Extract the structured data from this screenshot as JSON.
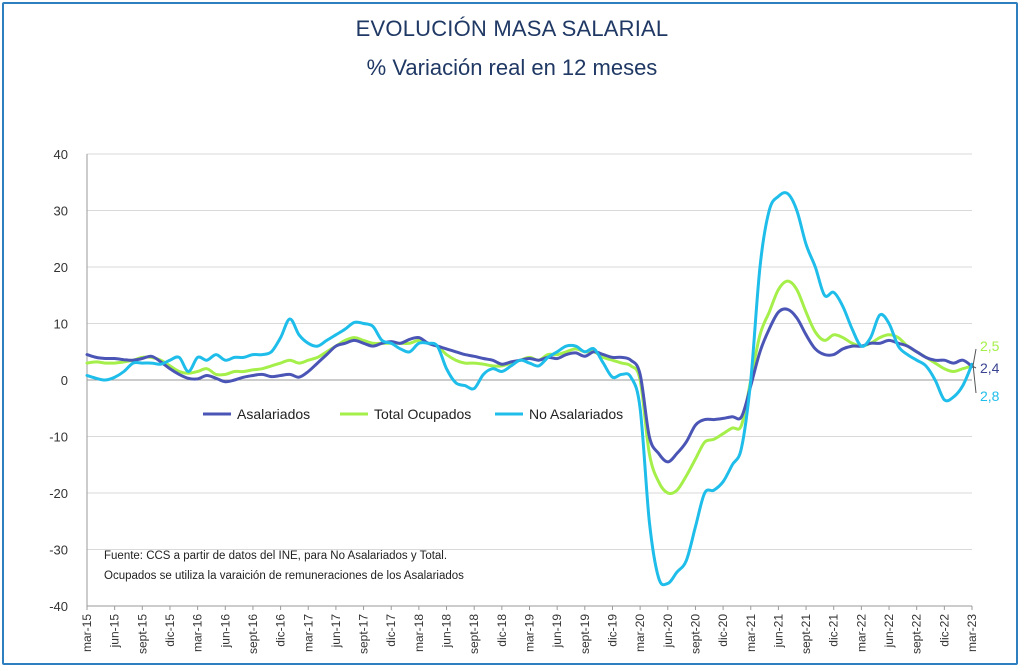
{
  "chart_data": {
    "type": "line",
    "title": "EVOLUCIÓN MASA SALARIAL",
    "subtitle": "% Variación real en 12 meses",
    "ylim": [
      -40,
      40
    ],
    "yticks": [
      40,
      30,
      20,
      10,
      0,
      -10,
      -20,
      -30,
      -40
    ],
    "grid": true,
    "legend_position": "center-left",
    "xtick_labels": [
      "mar-15",
      "jun-15",
      "sept-15",
      "dic-15",
      "mar-16",
      "jun-16",
      "sept-16",
      "dic-16",
      "mar-17",
      "jun-17",
      "sept-17",
      "dic-17",
      "mar-18",
      "jun-18",
      "sept-18",
      "dic-18",
      "mar-19",
      "jun-19",
      "sept-19",
      "dic-19",
      "mar-20",
      "jun-20",
      "sept-20",
      "dic-20",
      "mar-21",
      "jun-21",
      "sept-21",
      "dic-21",
      "mar-22",
      "jun-22",
      "sept-22",
      "dic-22",
      "mar-23"
    ],
    "x": [
      "mar-15",
      "abr-15",
      "may-15",
      "jun-15",
      "jul-15",
      "ago-15",
      "sept-15",
      "oct-15",
      "nov-15",
      "dic-15",
      "ene-16",
      "feb-16",
      "mar-16",
      "abr-16",
      "may-16",
      "jun-16",
      "jul-16",
      "ago-16",
      "sept-16",
      "oct-16",
      "nov-16",
      "dic-16",
      "ene-17",
      "feb-17",
      "mar-17",
      "abr-17",
      "may-17",
      "jun-17",
      "jul-17",
      "ago-17",
      "sept-17",
      "oct-17",
      "nov-17",
      "dic-17",
      "ene-18",
      "feb-18",
      "mar-18",
      "abr-18",
      "may-18",
      "jun-18",
      "jul-18",
      "ago-18",
      "sept-18",
      "oct-18",
      "nov-18",
      "dic-18",
      "ene-19",
      "feb-19",
      "mar-19",
      "abr-19",
      "may-19",
      "jun-19",
      "jul-19",
      "ago-19",
      "sept-19",
      "oct-19",
      "nov-19",
      "dic-19",
      "ene-20",
      "feb-20",
      "mar-20",
      "abr-20",
      "may-20",
      "jun-20",
      "jul-20",
      "ago-20",
      "sept-20",
      "oct-20",
      "nov-20",
      "dic-20",
      "ene-21",
      "feb-21",
      "mar-21",
      "abr-21",
      "may-21",
      "jun-21",
      "jul-21",
      "ago-21",
      "sept-21",
      "oct-21",
      "nov-21",
      "dic-21",
      "ene-22",
      "feb-22",
      "mar-22",
      "abr-22",
      "may-22",
      "jun-22",
      "jul-22",
      "ago-22",
      "sept-22",
      "oct-22",
      "nov-22",
      "dic-22",
      "ene-23",
      "feb-23",
      "mar-23"
    ],
    "series": [
      {
        "name": "Asalariados",
        "color": "#4a55b5",
        "end_label": "2,4",
        "values": [
          4.5,
          4.0,
          3.8,
          3.8,
          3.6,
          3.5,
          3.8,
          4.2,
          3.2,
          2.0,
          1.0,
          0.3,
          0.2,
          0.8,
          0.3,
          -0.3,
          0.0,
          0.5,
          0.8,
          1.0,
          0.6,
          0.8,
          1.0,
          0.5,
          1.5,
          3.0,
          4.5,
          6.0,
          6.5,
          7.0,
          6.5,
          6.0,
          6.5,
          6.8,
          6.5,
          7.2,
          7.5,
          6.5,
          6.0,
          5.5,
          5.0,
          4.5,
          4.2,
          3.8,
          3.5,
          2.8,
          3.2,
          3.5,
          3.8,
          3.5,
          4.0,
          3.8,
          4.5,
          4.8,
          4.2,
          5.0,
          4.5,
          4.0,
          4.0,
          3.5,
          1.0,
          -10.0,
          -13.0,
          -14.5,
          -13.0,
          -11.0,
          -8.0,
          -7.0,
          -7.0,
          -6.8,
          -6.5,
          -6.5,
          -1.0,
          5.0,
          9.0,
          12.0,
          12.5,
          11.0,
          8.0,
          5.5,
          4.5,
          4.5,
          5.5,
          6.0,
          6.0,
          6.5,
          6.5,
          7.0,
          6.5,
          6.0,
          5.0,
          4.0,
          3.5,
          3.5,
          3.0,
          3.5,
          2.4
        ]
      },
      {
        "name": "Total Ocupados",
        "color": "#a5ef4a",
        "end_label": "2,5",
        "values": [
          3.0,
          3.2,
          3.0,
          3.0,
          3.2,
          3.5,
          4.0,
          4.0,
          3.5,
          2.5,
          1.5,
          1.2,
          1.5,
          2.0,
          1.0,
          1.0,
          1.5,
          1.5,
          1.8,
          2.0,
          2.5,
          3.0,
          3.5,
          3.0,
          3.5,
          4.0,
          5.0,
          6.0,
          7.0,
          7.5,
          7.0,
          6.5,
          6.5,
          6.5,
          6.5,
          6.5,
          7.0,
          6.5,
          6.0,
          4.5,
          3.5,
          3.0,
          3.0,
          2.8,
          2.5,
          2.5,
          3.0,
          3.5,
          4.0,
          3.5,
          4.5,
          4.5,
          5.0,
          5.5,
          5.0,
          5.0,
          4.0,
          3.5,
          3.0,
          2.5,
          0.0,
          -13.0,
          -18.0,
          -20.0,
          -19.5,
          -17.0,
          -14.0,
          -11.0,
          -10.5,
          -9.5,
          -8.5,
          -8.0,
          0.0,
          8.0,
          12.0,
          16.0,
          17.5,
          16.0,
          12.0,
          8.5,
          7.0,
          8.0,
          7.5,
          6.5,
          6.0,
          6.5,
          7.5,
          8.0,
          7.5,
          6.0,
          5.0,
          4.0,
          3.0,
          2.0,
          1.5,
          2.0,
          2.5
        ]
      },
      {
        "name": "No Asalariados",
        "color": "#1ebdea",
        "end_label": "2,8",
        "values": [
          0.8,
          0.3,
          0.0,
          0.5,
          1.5,
          3.0,
          3.0,
          3.0,
          2.8,
          3.5,
          4.0,
          1.5,
          4.0,
          3.5,
          4.5,
          3.5,
          4.0,
          4.0,
          4.5,
          4.5,
          5.0,
          7.5,
          10.8,
          8.0,
          6.5,
          6.0,
          7.0,
          8.0,
          9.0,
          10.2,
          10.0,
          9.5,
          7.0,
          6.5,
          5.5,
          5.0,
          6.5,
          6.5,
          6.0,
          2.0,
          -0.5,
          -1.0,
          -1.5,
          1.0,
          2.0,
          1.5,
          2.5,
          3.5,
          3.0,
          2.5,
          4.0,
          5.0,
          6.0,
          6.0,
          5.0,
          5.5,
          3.0,
          0.5,
          1.0,
          0.5,
          -5.0,
          -25.0,
          -35.0,
          -36.0,
          -34.0,
          -32.0,
          -26.0,
          -20.0,
          -19.5,
          -18.0,
          -15.0,
          -12.0,
          0.0,
          20.0,
          30.0,
          32.5,
          33.0,
          30.0,
          24.0,
          20.0,
          15.0,
          15.5,
          13.0,
          9.0,
          6.0,
          7.5,
          11.5,
          10.0,
          6.0,
          4.5,
          3.5,
          2.5,
          0.0,
          -3.5,
          -3.0,
          -1.0,
          2.8
        ]
      }
    ],
    "note_lines": [
      "Fuente: CCS a partir de datos del INE, para No Asalariados y Total.",
      "Ocupados se utiliza la varaición de remuneraciones de los Asalariados"
    ]
  }
}
